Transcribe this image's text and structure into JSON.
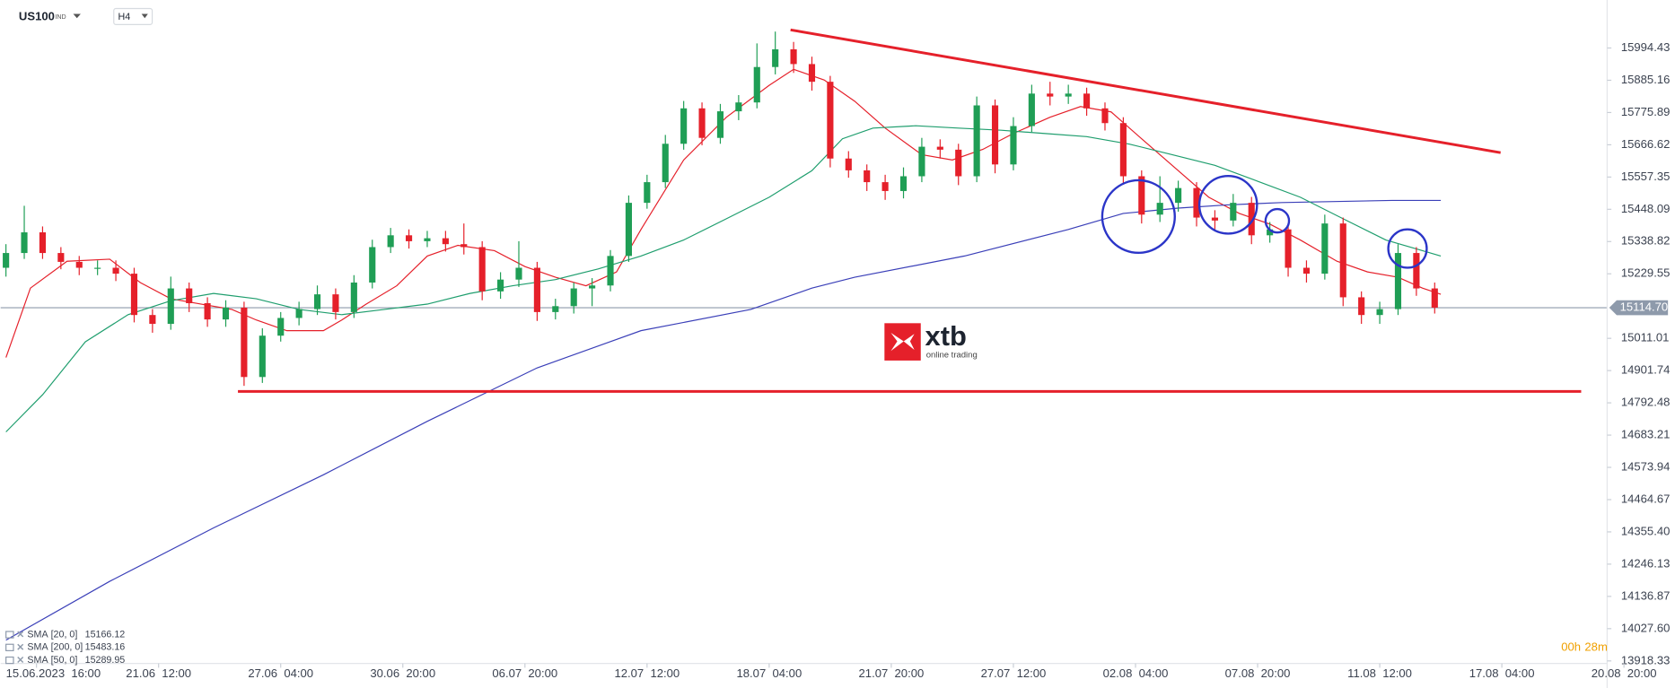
{
  "chart_data": {
    "type": "candlestick",
    "symbol": "US100",
    "symbol_tag": "IND",
    "timeframe": "H4",
    "timer_hours": "00h",
    "timer_minutes": "28m",
    "logo": "xtb",
    "logo_subtitle": "online trading",
    "up_color": "#1f9e55",
    "down_color": "#e5202a",
    "x": [
      0,
      3,
      6,
      9,
      12,
      15,
      18,
      21,
      24,
      27,
      30,
      33,
      36,
      39,
      42,
      45,
      48,
      51,
      54,
      57,
      60,
      63,
      66,
      69,
      72,
      75,
      78,
      81,
      84,
      87,
      90,
      93,
      96,
      99,
      102,
      105,
      108,
      111,
      114,
      117,
      120,
      123,
      126,
      129,
      132,
      135,
      138,
      141,
      144,
      147,
      150,
      153,
      156,
      159,
      162,
      165,
      168,
      171,
      174,
      177,
      180,
      183,
      186,
      189,
      192,
      195,
      198,
      201,
      204,
      207,
      210,
      213,
      216,
      219,
      222,
      225,
      228,
      231,
      234
    ],
    "open": [
      15250,
      15300,
      15370,
      15300,
      15270,
      15250,
      15250,
      15230,
      15090,
      15060,
      15180,
      15130,
      15075,
      15115,
      14880,
      15020,
      15080,
      15110,
      15160,
      15100,
      15200,
      15320,
      15360,
      15340,
      15350,
      15330,
      15320,
      15170,
      15210,
      15250,
      15100,
      15120,
      15180,
      15190,
      15290,
      15470,
      15540,
      15670,
      15790,
      15690,
      15780,
      15810,
      15930,
      15990,
      15940,
      15880,
      15620,
      15580,
      15540,
      15510,
      15560,
      15660,
      15650,
      15560,
      15800,
      15600,
      15730,
      15840,
      15830,
      15840,
      15790,
      15740,
      15560,
      15430,
      15470,
      15520,
      15420,
      15410,
      15470,
      15360,
      15380,
      15250,
      15230,
      15400,
      15150,
      15090,
      15110,
      15300,
      15180
    ],
    "high": [
      15330,
      15460,
      15390,
      15320,
      15290,
      15275,
      15275,
      15250,
      15110,
      15220,
      15200,
      15150,
      15140,
      15135,
      15045,
      15100,
      15135,
      15190,
      15180,
      15225,
      15345,
      15385,
      15380,
      15375,
      15375,
      15400,
      15340,
      15235,
      15340,
      15270,
      15145,
      15200,
      15215,
      15310,
      15495,
      15565,
      15700,
      15815,
      15810,
      15805,
      15835,
      16010,
      16050,
      16015,
      15965,
      15900,
      15645,
      15600,
      15565,
      15590,
      15690,
      15685,
      15670,
      15830,
      15820,
      15760,
      15870,
      15880,
      15870,
      15860,
      15810,
      15760,
      15580,
      15560,
      15545,
      15540,
      15445,
      15500,
      15490,
      15405,
      15400,
      15275,
      15430,
      15420,
      15170,
      15135,
      15330,
      15320,
      15200
    ],
    "low": [
      15220,
      15280,
      15280,
      15245,
      15225,
      15225,
      15205,
      15065,
      15030,
      15040,
      15100,
      15050,
      15050,
      14850,
      14860,
      15000,
      15055,
      15090,
      15075,
      15080,
      15180,
      15300,
      15315,
      15320,
      15305,
      15295,
      15140,
      15145,
      15185,
      15070,
      15075,
      15095,
      15120,
      15170,
      15270,
      15450,
      15520,
      15650,
      15665,
      15670,
      15750,
      15790,
      15905,
      15910,
      15850,
      15590,
      15555,
      15510,
      15480,
      15485,
      15540,
      15620,
      15530,
      15540,
      15570,
      15580,
      15710,
      15800,
      15805,
      15765,
      15715,
      15535,
      15400,
      15405,
      15440,
      15390,
      15380,
      15390,
      15330,
      15335,
      15220,
      15200,
      15210,
      15120,
      15060,
      15060,
      15090,
      15155,
      15095
    ],
    "close": [
      15300,
      15370,
      15300,
      15270,
      15250,
      15250,
      15230,
      15090,
      15060,
      15180,
      15130,
      15075,
      15115,
      14880,
      15020,
      15080,
      15110,
      15160,
      15100,
      15200,
      15320,
      15360,
      15340,
      15350,
      15330,
      15320,
      15170,
      15210,
      15250,
      15100,
      15120,
      15180,
      15190,
      15290,
      15470,
      15540,
      15670,
      15790,
      15690,
      15780,
      15810,
      15930,
      15990,
      15940,
      15880,
      15620,
      15580,
      15540,
      15510,
      15560,
      15660,
      15650,
      15560,
      15800,
      15600,
      15730,
      15840,
      15830,
      15840,
      15790,
      15740,
      15560,
      15430,
      15470,
      15520,
      15420,
      15410,
      15470,
      15360,
      15380,
      15250,
      15230,
      15400,
      15150,
      15090,
      15110,
      15300,
      15180,
      15115
    ],
    "indicators": [
      {
        "name": "SMA",
        "params": "[20, 0]",
        "last": 15166.12,
        "color": "#e5202a",
        "x": [
          0,
          4,
          10,
          17,
          22,
          27,
          32,
          37,
          41,
          46,
          52,
          55,
          59,
          64,
          69,
          74,
          80,
          85,
          90,
          95,
          100,
          104,
          111,
          118,
          125,
          129,
          134,
          139,
          144,
          150,
          155,
          160,
          165,
          171,
          176,
          181,
          186,
          191,
          197,
          202,
          207,
          212,
          218,
          223,
          228,
          232,
          235
        ],
        "values": [
          14946,
          15181,
          15272,
          15279,
          15200,
          15145,
          15127,
          15109,
          15073,
          15037,
          15037,
          15073,
          15127,
          15189,
          15290,
          15326,
          15308,
          15254,
          15218,
          15189,
          15236,
          15380,
          15615,
          15760,
          15868,
          15922,
          15886,
          15814,
          15723,
          15633,
          15615,
          15651,
          15705,
          15760,
          15796,
          15778,
          15687,
          15597,
          15489,
          15434,
          15398,
          15344,
          15272,
          15236,
          15218,
          15181,
          15160
        ]
      },
      {
        "name": "SMA",
        "params": "[200, 0]",
        "last": 15483.16,
        "color": "#3a3fb8",
        "x": [
          0,
          17,
          34,
          52,
          69,
          87,
          104,
          122,
          132,
          139,
          157,
          174,
          183,
          192,
          200,
          209,
          227,
          235
        ],
        "values": [
          13989,
          14188,
          14369,
          14549,
          14730,
          14911,
          15037,
          15109,
          15181,
          15218,
          15290,
          15380,
          15434,
          15452,
          15463,
          15471,
          15478,
          15478
        ]
      },
      {
        "name": "SMA",
        "params": "[50, 0]",
        "last": 15289.95,
        "color": "#1f9e6e",
        "x": [
          0,
          6,
          13,
          20,
          27,
          34,
          41,
          48,
          55,
          62,
          69,
          76,
          83,
          90,
          97,
          104,
          111,
          118,
          125,
          132,
          137,
          142,
          149,
          156,
          163,
          170,
          177,
          184,
          191,
          198,
          205,
          212,
          219,
          226,
          232,
          235
        ],
        "values": [
          14694,
          14820,
          14999,
          15091,
          15138,
          15163,
          15145,
          15109,
          15091,
          15109,
          15127,
          15163,
          15189,
          15210,
          15246,
          15290,
          15344,
          15416,
          15489,
          15579,
          15687,
          15723,
          15731,
          15723,
          15716,
          15705,
          15694,
          15669,
          15633,
          15597,
          15543,
          15489,
          15416,
          15344,
          15308,
          15290
        ]
      }
    ],
    "drawings": [
      {
        "color": "#e5202a",
        "x": [
          128.5,
          244.8
        ],
        "values": [
          16056,
          15640
        ]
      },
      {
        "color": "#e5202a",
        "x": [
          38,
          258
        ],
        "values": [
          14831,
          14831
        ]
      }
    ],
    "current_price": {
      "value": 15114.7,
      "label": "15114.70"
    },
    "xlim": [
      -0.87,
      262.24
    ],
    "ylim": [
      13909.7,
      16157.0
    ],
    "yticks": [
      15994.43,
      15885.16,
      15775.89,
      15666.62,
      15557.35,
      15448.09,
      15338.82,
      15229.55,
      15011.01,
      14901.74,
      14792.48,
      14683.21,
      14573.94,
      14464.67,
      {
        "value": 14355.4,
        "label": "14355.40"
      },
      14246.13,
      14136.87,
      {
        "value": 14027.6,
        "label": "14027.60"
      },
      13918.33
    ],
    "xticks": [
      {
        "value": 5,
        "label": "15.06.2023  16:00"
      },
      {
        "value": 25,
        "label": "21.06  12:00"
      },
      {
        "value": 45,
        "label": "27.06  04:00"
      },
      {
        "value": 65,
        "label": "30.06  20:00"
      },
      {
        "value": 85,
        "label": "06.07  20:00"
      },
      {
        "value": 105,
        "label": "12.07  12:00"
      },
      {
        "value": 125,
        "label": "18.07  04:00"
      },
      {
        "value": 145,
        "label": "21.07  20:00"
      },
      {
        "value": 165,
        "label": "27.07  12:00"
      },
      {
        "value": 185,
        "label": "02.08  04:00"
      },
      {
        "value": 205,
        "label": "07.08  20:00"
      },
      {
        "value": 225,
        "label": "11.08  12:00"
      },
      {
        "value": 245,
        "label": "17.08  04:00"
      },
      {
        "value": 265,
        "label": "20.08  20:00"
      }
    ]
  }
}
